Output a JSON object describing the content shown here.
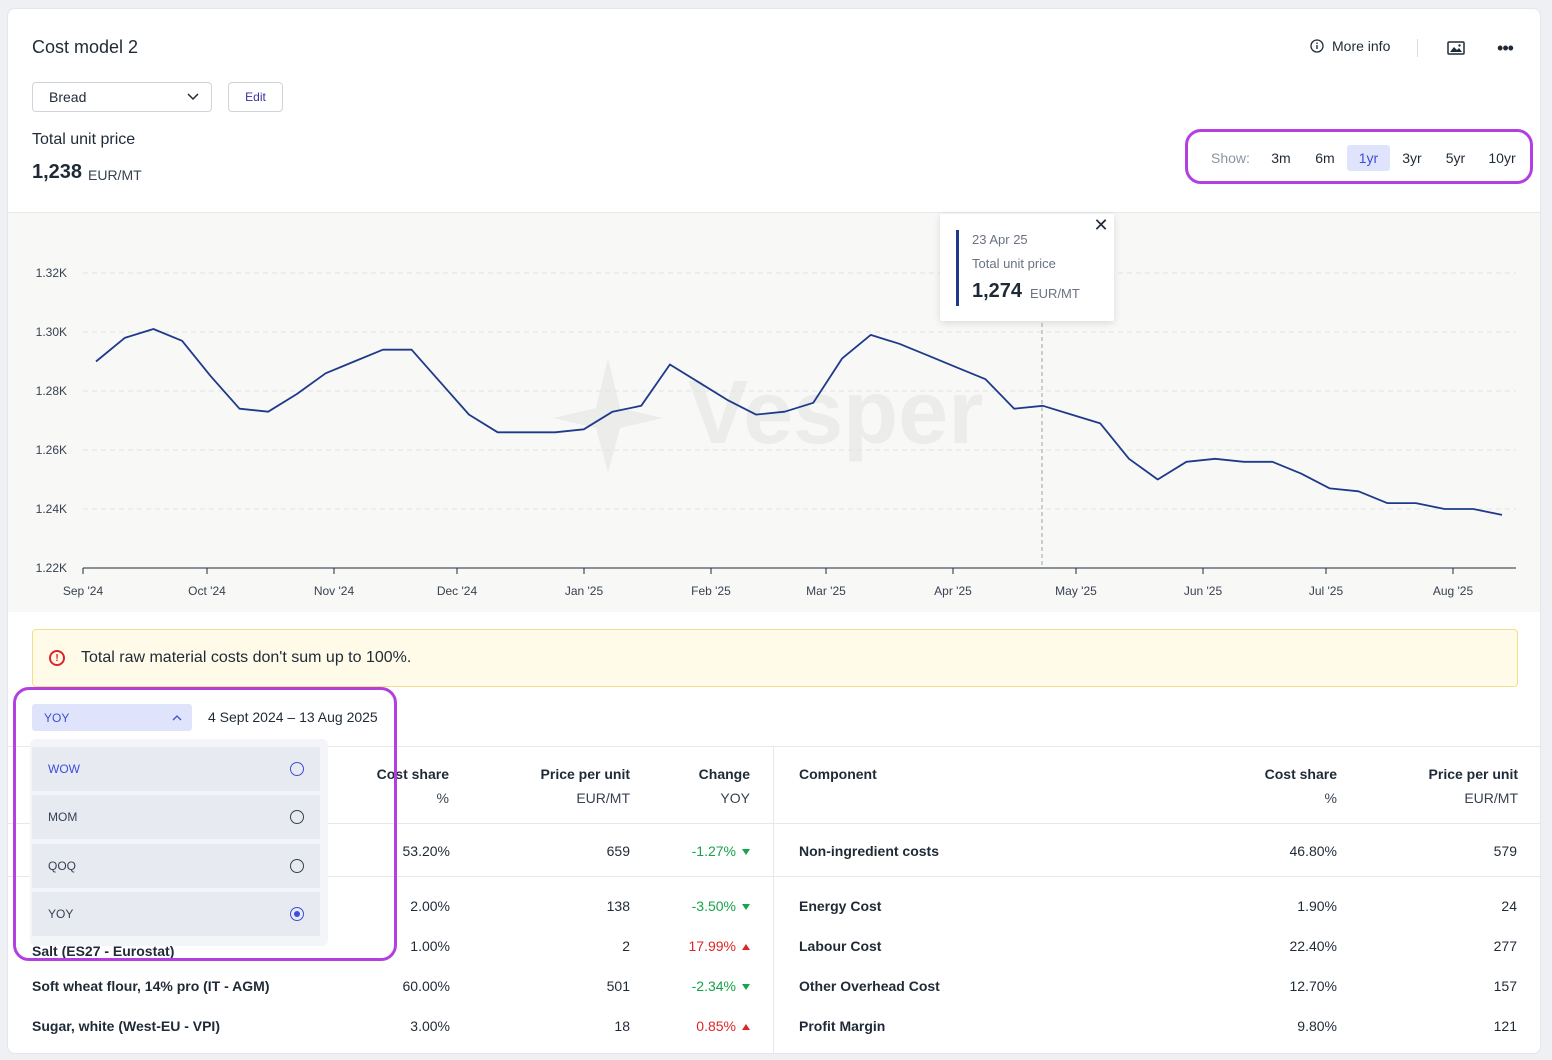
{
  "header": {
    "title": "Cost model 2",
    "more_info": "More info"
  },
  "model_select": {
    "value": "Bread"
  },
  "edit_label": "Edit",
  "total": {
    "label": "Total unit price",
    "value": "1,238",
    "unit": "EUR/MT"
  },
  "range": {
    "show_label": "Show:",
    "options": [
      "3m",
      "6m",
      "1yr",
      "3yr",
      "5yr",
      "10yr"
    ],
    "active": "1yr"
  },
  "tooltip": {
    "date": "23 Apr 25",
    "label": "Total unit price",
    "value": "1,274",
    "unit": "EUR/MT"
  },
  "chart_data": {
    "type": "line",
    "y_ticks": [
      "1.22K",
      "1.24K",
      "1.26K",
      "1.28K",
      "1.30K",
      "1.32K"
    ],
    "x_ticks": [
      "Sep '24",
      "Oct '24",
      "Nov '24",
      "Dec '24",
      "Jan '25",
      "Feb '25",
      "Mar '25",
      "Apr '25",
      "May '25",
      "Jun '25",
      "Jul '25",
      "Aug '25"
    ],
    "ylim": [
      1220,
      1320
    ],
    "grid": true,
    "watermark": "Vesper",
    "series": [
      {
        "color": "#1e3a8a",
        "values": [
          1290,
          1298,
          1301,
          1297,
          1285,
          1274,
          1273,
          1279,
          1286,
          1290,
          1294,
          1294,
          1283,
          1272,
          1266,
          1266,
          1266,
          1267,
          1273,
          1275,
          1289,
          1283,
          1277,
          1272,
          1273,
          1276,
          1291,
          1299,
          1296,
          1292,
          1288,
          1284,
          1274,
          1275,
          1272,
          1269,
          1257,
          1250,
          1256,
          1257,
          1256,
          1256,
          1252,
          1247,
          1246,
          1242,
          1242,
          1240,
          1240,
          1238
        ]
      }
    ]
  },
  "warning": {
    "text": "Total raw material costs don't sum up to 100%."
  },
  "period": {
    "selected": "YOY",
    "range": "4 Sept 2024 – 13 Aug 2025",
    "options": [
      "WOW",
      "MOM",
      "QOQ",
      "YOY"
    ]
  },
  "table_left": {
    "headers": {
      "cost_share": "Cost share",
      "cost_share_sub": "%",
      "price": "Price per unit",
      "price_sub": "EUR/MT",
      "change": "Change",
      "change_sub": "YOY"
    },
    "rows": [
      {
        "name": "",
        "share": "53.20%",
        "price": "659",
        "change": "-1.27%",
        "dir": "down"
      },
      {
        "name": "",
        "share": "2.00%",
        "price": "138",
        "change": "-3.50%",
        "dir": "down"
      },
      {
        "name": "Salt (ES27 - Eurostat)",
        "share": "1.00%",
        "price": "2",
        "change": "17.99%",
        "dir": "up"
      },
      {
        "name": "Soft wheat flour, 14% pro (IT - AGM)",
        "share": "60.00%",
        "price": "501",
        "change": "-2.34%",
        "dir": "down"
      },
      {
        "name": "Sugar, white (West-EU - VPI)",
        "share": "3.00%",
        "price": "18",
        "change": "0.85%",
        "dir": "up"
      }
    ]
  },
  "table_right": {
    "headers": {
      "component": "Component",
      "cost_share": "Cost share",
      "cost_share_sub": "%",
      "price": "Price per unit",
      "price_sub": "EUR/MT"
    },
    "rows": [
      {
        "name": "Non-ingredient costs",
        "share": "46.80%",
        "price": "579"
      },
      {
        "name": "Energy Cost",
        "share": "1.90%",
        "price": "24"
      },
      {
        "name": "Labour Cost",
        "share": "22.40%",
        "price": "277"
      },
      {
        "name": "Other Overhead Cost",
        "share": "12.70%",
        "price": "157"
      },
      {
        "name": "Profit Margin",
        "share": "9.80%",
        "price": "121"
      }
    ]
  }
}
